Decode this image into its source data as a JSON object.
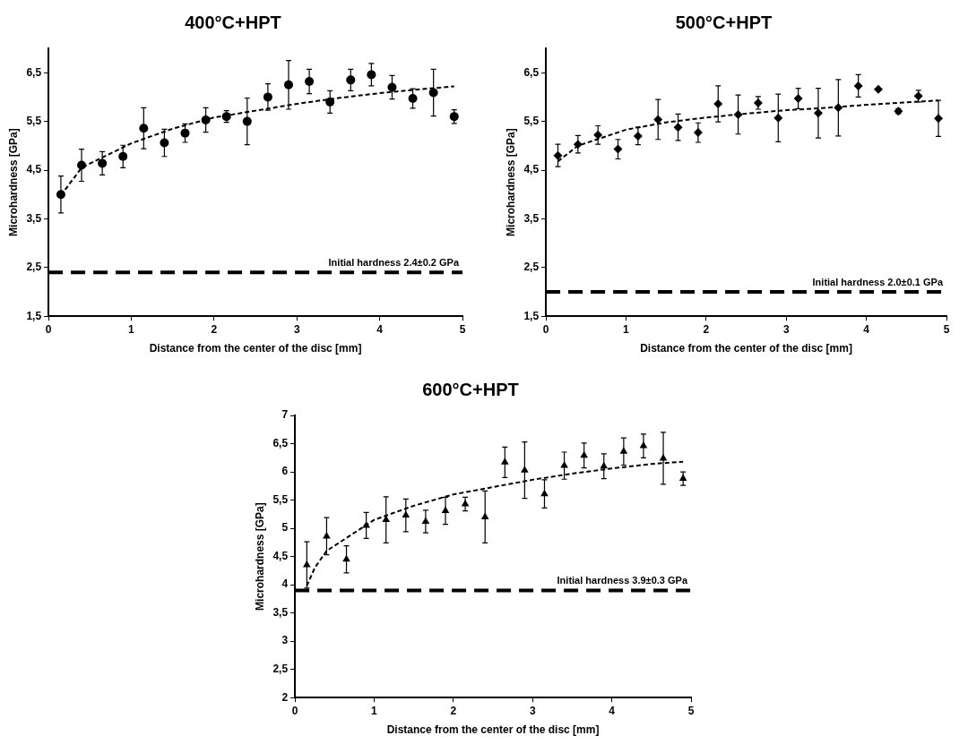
{
  "chart_data": [
    {
      "type": "scatter",
      "title": "400°C+HPT",
      "xlabel": "Distance from the center of the disc [mm]",
      "ylabel": "Microhardness [GPa]",
      "xlim": [
        0,
        5
      ],
      "xticks": [
        0,
        1,
        2,
        3,
        4,
        5
      ],
      "ylim": [
        1.5,
        7
      ],
      "yticks": [
        {
          "value": 1.5,
          "label": "1,5"
        },
        {
          "value": 2.5,
          "label": "2,5"
        },
        {
          "value": 3.5,
          "label": "3,5"
        },
        {
          "value": 4.5,
          "label": "4,5"
        },
        {
          "value": 5.5,
          "label": "5,5"
        },
        {
          "value": 6.5,
          "label": "6,5"
        }
      ],
      "grid": false,
      "legend": false,
      "marker": "circle",
      "series": [
        {
          "color": "#000000",
          "x": [
            0.15,
            0.4,
            0.65,
            0.9,
            1.15,
            1.4,
            1.65,
            1.9,
            2.15,
            2.4,
            2.65,
            2.9,
            3.15,
            3.4,
            3.65,
            3.9,
            4.15,
            4.4,
            4.65,
            4.9
          ],
          "values": [
            4.0,
            4.6,
            4.64,
            4.78,
            5.36,
            5.06,
            5.26,
            5.53,
            5.6,
            5.5,
            6.0,
            6.25,
            6.32,
            5.9,
            6.35,
            6.46,
            6.2,
            5.97,
            6.09,
            5.6
          ],
          "errors": [
            0.38,
            0.33,
            0.24,
            0.23,
            0.42,
            0.28,
            0.19,
            0.25,
            0.12,
            0.48,
            0.27,
            0.5,
            0.25,
            0.23,
            0.22,
            0.23,
            0.24,
            0.2,
            0.48,
            0.14
          ]
        },
        {
          "type": "line",
          "color": "#000000",
          "marker": "none",
          "line_style": "dashed",
          "x": [
            0.15,
            0.4,
            1,
            1.5,
            2,
            2.5,
            3,
            3.5,
            4,
            4.5,
            4.9
          ],
          "values": [
            3.98,
            4.55,
            5.05,
            5.35,
            5.58,
            5.72,
            5.86,
            5.98,
            6.08,
            6.16,
            6.22
          ]
        }
      ],
      "ref_lines": [
        {
          "axis": "y",
          "value": 2.4,
          "label": "Initial hardness 2.4±0.2 GPa",
          "color": "#000000",
          "line_style": "dashed"
        }
      ]
    },
    {
      "type": "scatter",
      "title": "500°C+HPT",
      "xlabel": "Distance from the center of the disc [mm]",
      "ylabel": "Microhardness [GPa]",
      "xlim": [
        0,
        5
      ],
      "xticks": [
        0,
        1,
        2,
        3,
        4,
        5
      ],
      "ylim": [
        1.5,
        7
      ],
      "yticks": [
        {
          "value": 1.5,
          "label": "1,5"
        },
        {
          "value": 2.5,
          "label": "2,5"
        },
        {
          "value": 3.5,
          "label": "3,5"
        },
        {
          "value": 4.5,
          "label": "4,5"
        },
        {
          "value": 5.5,
          "label": "5,5"
        },
        {
          "value": 6.5,
          "label": "6,5"
        }
      ],
      "grid": false,
      "legend": false,
      "marker": "diamond",
      "series": [
        {
          "color": "#000000",
          "x": [
            0.15,
            0.4,
            0.65,
            0.9,
            1.15,
            1.4,
            1.65,
            1.9,
            2.15,
            2.4,
            2.65,
            2.9,
            3.15,
            3.4,
            3.65,
            3.9,
            4.15,
            4.4,
            4.65,
            4.9
          ],
          "values": [
            4.8,
            5.03,
            5.22,
            4.93,
            5.2,
            5.54,
            5.38,
            5.27,
            5.86,
            5.64,
            5.88,
            5.57,
            5.97,
            5.67,
            5.78,
            6.23,
            6.16,
            5.71,
            6.02,
            5.56
          ],
          "errors": [
            0.23,
            0.18,
            0.19,
            0.2,
            0.18,
            0.41,
            0.27,
            0.2,
            0.37,
            0.4,
            0.13,
            0.49,
            0.21,
            0.51,
            0.58,
            0.23,
            null,
            0.05,
            0.12,
            0.37
          ]
        },
        {
          "type": "line",
          "color": "#000000",
          "marker": "none",
          "line_style": "dashed",
          "x": [
            0.15,
            0.4,
            1,
            1.5,
            2,
            2.5,
            3,
            3.5,
            4,
            4.5,
            4.9
          ],
          "values": [
            4.68,
            5.0,
            5.33,
            5.48,
            5.58,
            5.66,
            5.73,
            5.78,
            5.84,
            5.89,
            5.93
          ]
        }
      ],
      "ref_lines": [
        {
          "axis": "y",
          "value": 2.0,
          "label": "Initial hardness 2.0±0.1 GPa",
          "color": "#000000",
          "line_style": "dashed"
        }
      ]
    },
    {
      "type": "scatter",
      "title": "600°C+HPT",
      "xlabel": "Distance from the center of the disc [mm]",
      "ylabel": "Microhardness [GPa]",
      "xlim": [
        0,
        5
      ],
      "xticks": [
        0,
        1,
        2,
        3,
        4,
        5
      ],
      "ylim": [
        2,
        7
      ],
      "yticks": [
        2,
        {
          "value": 2.5,
          "label": "2,5"
        },
        3,
        {
          "value": 3.5,
          "label": "3,5"
        },
        4,
        {
          "value": 4.5,
          "label": "4,5"
        },
        5,
        {
          "value": 5.5,
          "label": "5,5"
        },
        6,
        {
          "value": 6.5,
          "label": "6,5"
        },
        7
      ],
      "grid": false,
      "legend": false,
      "marker": "triangle",
      "series": [
        {
          "color": "#000000",
          "x": [
            0.15,
            0.4,
            0.65,
            0.9,
            1.15,
            1.4,
            1.65,
            1.9,
            2.15,
            2.4,
            2.65,
            2.9,
            3.15,
            3.4,
            3.65,
            3.9,
            4.15,
            4.4,
            4.65,
            4.9
          ],
          "values": [
            4.35,
            4.86,
            4.45,
            5.05,
            5.15,
            5.23,
            5.12,
            5.31,
            5.43,
            5.2,
            6.17,
            6.03,
            5.61,
            6.11,
            6.29,
            6.1,
            6.36,
            6.46,
            6.24,
            5.88
          ],
          "errors": [
            0.41,
            0.33,
            0.24,
            0.23,
            0.41,
            0.29,
            0.2,
            0.24,
            0.12,
            0.46,
            0.27,
            0.5,
            0.25,
            0.24,
            0.22,
            0.22,
            0.24,
            0.21,
            0.46,
            0.12
          ]
        },
        {
          "type": "line",
          "color": "#000000",
          "marker": "none",
          "line_style": "dashed",
          "x": [
            0.15,
            0.25,
            0.4,
            1,
            1.5,
            2,
            2.5,
            3,
            3.5,
            4,
            4.5,
            4.9
          ],
          "values": [
            3.98,
            4.3,
            4.6,
            5.15,
            5.4,
            5.6,
            5.73,
            5.86,
            5.97,
            6.06,
            6.14,
            6.18
          ]
        }
      ],
      "ref_lines": [
        {
          "axis": "y",
          "value": 3.9,
          "label": "Initial hardness 3.9±0.3 GPa",
          "color": "#000000",
          "line_style": "dashed"
        }
      ]
    }
  ]
}
